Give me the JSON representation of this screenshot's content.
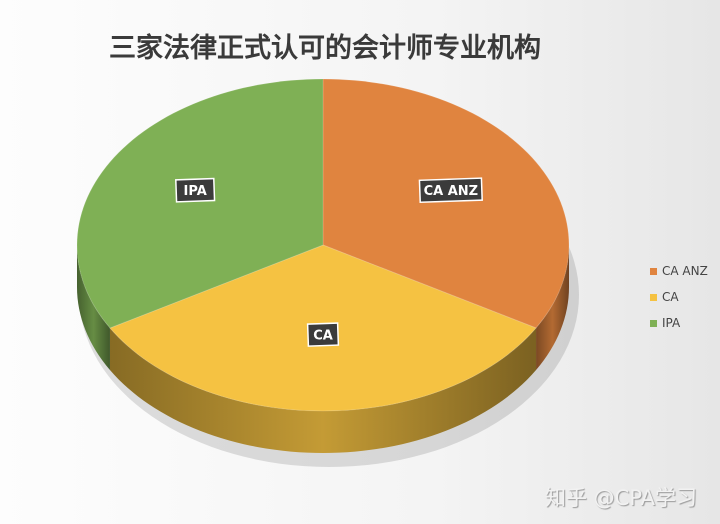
{
  "chart_data": {
    "type": "pie",
    "title": "三家法律正式认可的会计师专业机构",
    "categories": [
      "CA ANZ",
      "CA",
      "IPA"
    ],
    "values": [
      1,
      1,
      1
    ],
    "colors": [
      "#e0843f",
      "#f5c242",
      "#7fb055"
    ],
    "style": "3d",
    "legend": {
      "placement": "right",
      "entries": [
        "CA ANZ",
        "CA",
        "IPA"
      ]
    },
    "data_labels": [
      "CA ANZ",
      "CA",
      "IPA"
    ]
  },
  "watermark": "知乎 @CPA学习"
}
